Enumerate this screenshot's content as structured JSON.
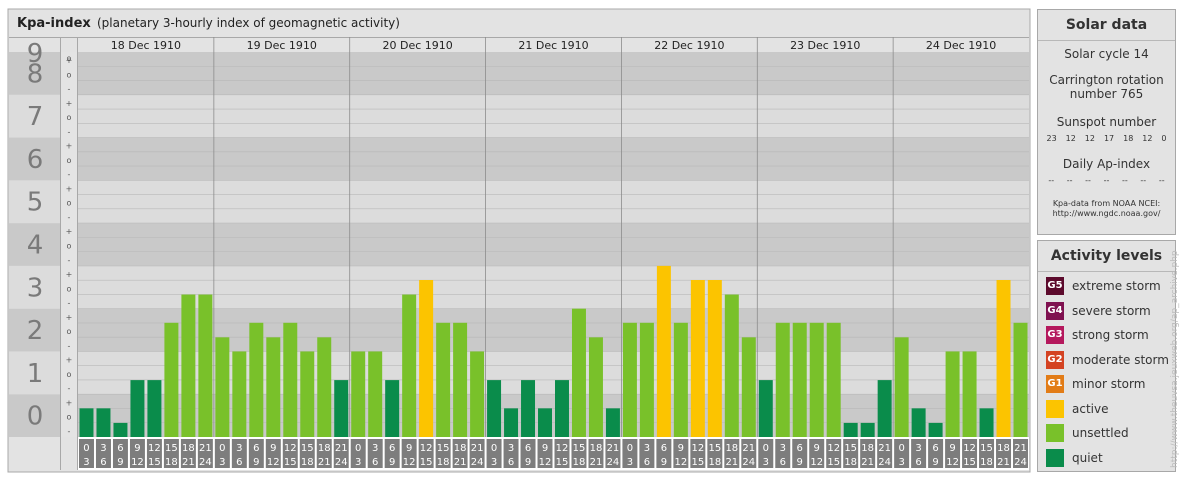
{
  "header": {
    "title": "Kpa-index",
    "subtitle": "(planetary 3-hourly index of geomagnetic activity)"
  },
  "solar": {
    "title": "Solar data",
    "cycle": "Solar cycle 14",
    "carrington_line1": "Carrington rotation",
    "carrington_line2": "number 765",
    "sunspot_label": "Sunspot number",
    "sunspot_values": [
      "23",
      "12",
      "12",
      "17",
      "18",
      "12",
      "0"
    ],
    "ap_label": "Daily Ap-index",
    "ap_values": [
      "--",
      "--",
      "--",
      "--",
      "--",
      "--",
      "--"
    ],
    "source_line1": "Kpa-data from NOAA NCEI:",
    "source_line2": "http://www.ngdc.noaa.gov/"
  },
  "levels": {
    "title": "Activity levels",
    "items": [
      {
        "badge": "G5",
        "label": "extreme storm",
        "color": "#5c0a2c"
      },
      {
        "badge": "G4",
        "label": "severe storm",
        "color": "#7f1150"
      },
      {
        "badge": "G3",
        "label": "strong storm",
        "color": "#b5195d"
      },
      {
        "badge": "G2",
        "label": "moderate storm",
        "color": "#d44322"
      },
      {
        "badge": "G1",
        "label": "minor storm",
        "color": "#e27c17"
      },
      {
        "badge": "",
        "label": "active",
        "color": "#fcc400"
      },
      {
        "badge": "",
        "label": "unsettled",
        "color": "#79c12a"
      },
      {
        "badge": "",
        "label": "quiet",
        "color": "#0a8c4b"
      }
    ]
  },
  "credit": "http://www.theuvsa.jeuxweb.org/ap_archive.php",
  "chart_data": {
    "type": "bar",
    "ylim": [
      0,
      9
    ],
    "y_ticks": [
      "0",
      "1",
      "2",
      "3",
      "4",
      "5",
      "6",
      "7",
      "8",
      "9"
    ],
    "sub_ticks": [
      "-",
      "o",
      "+"
    ],
    "days": [
      "18 Dec 1910",
      "19 Dec 1910",
      "20 Dec 1910",
      "21 Dec 1910",
      "22 Dec 1910",
      "23 Dec 1910",
      "24 Dec 1910"
    ],
    "intervals": [
      [
        "0",
        "3"
      ],
      [
        "3",
        "6"
      ],
      [
        "6",
        "9"
      ],
      [
        "9",
        "12"
      ],
      [
        "12",
        "15"
      ],
      [
        "15",
        "18"
      ],
      [
        "18",
        "21"
      ],
      [
        "21",
        "24"
      ]
    ],
    "values": [
      0.67,
      0.67,
      0.33,
      1.33,
      1.33,
      2.67,
      3.33,
      3.33,
      2.33,
      2.0,
      2.67,
      2.33,
      2.67,
      2.0,
      2.33,
      1.33,
      2.0,
      2.0,
      1.33,
      3.33,
      3.67,
      2.67,
      2.67,
      2.0,
      1.33,
      0.67,
      1.33,
      0.67,
      1.33,
      3.0,
      2.33,
      0.67,
      2.67,
      2.67,
      4.0,
      2.67,
      3.67,
      3.67,
      3.33,
      2.33,
      1.33,
      2.67,
      2.67,
      2.67,
      2.67,
      0.33,
      0.33,
      1.33,
      2.33,
      0.67,
      0.33,
      2.0,
      2.0,
      0.67,
      3.67,
      2.67
    ],
    "colors": {
      "quiet": "#0a8c4b",
      "unsettled": "#79c12a",
      "active": "#fcc400"
    }
  }
}
